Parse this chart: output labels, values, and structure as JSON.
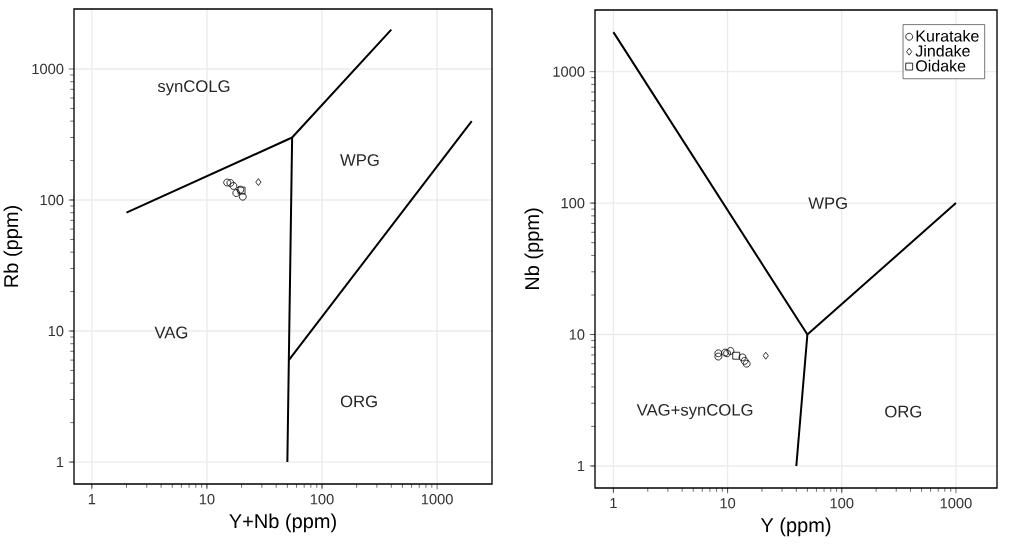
{
  "chart_data": [
    {
      "type": "scatter",
      "xlabel": "Y+Nb (ppm)",
      "ylabel": "Rb (ppm)",
      "log": "xy",
      "grid": true,
      "legend": false,
      "xlim": [
        0.7,
        3000
      ],
      "ylim": [
        0.68,
        2870
      ],
      "xticks": [
        1,
        10,
        100,
        1000
      ],
      "yticks": [
        1,
        10,
        100,
        1000
      ],
      "series": [
        {
          "type": "line",
          "color": "#000000",
          "x": [
            2,
            55,
            400
          ],
          "values": [
            80,
            300,
            2000
          ]
        },
        {
          "type": "line",
          "color": "#000000",
          "x": [
            55,
            51.5,
            50
          ],
          "values": [
            300,
            6,
            1
          ]
        },
        {
          "type": "line",
          "color": "#000000",
          "x": [
            51.5,
            2000
          ],
          "values": [
            6,
            400
          ]
        },
        {
          "marker": "circle",
          "color": "#000000",
          "x": [
            15,
            16,
            17,
            18,
            19.5,
            20.5
          ],
          "values": [
            136,
            135,
            128,
            113,
            120,
            106
          ]
        },
        {
          "marker": "diamond",
          "color": "#000000",
          "x": [
            28
          ],
          "values": [
            137
          ]
        },
        {
          "marker": "square",
          "color": "#000000",
          "x": [
            20
          ],
          "values": [
            118
          ]
        }
      ],
      "annotations": [
        "synCOLG",
        "WPG",
        "VAG",
        "ORG"
      ]
    },
    {
      "type": "scatter",
      "xlabel": "Y (ppm)",
      "ylabel": "Nb (ppm)",
      "log": "xy",
      "grid": true,
      "legend": "top right",
      "xlim": [
        0.69,
        2290
      ],
      "ylim": [
        0.68,
        2945
      ],
      "xticks": [
        1,
        10,
        100,
        1000
      ],
      "yticks": [
        1,
        10,
        100,
        1000
      ],
      "series": [
        {
          "type": "line",
          "color": "#000000",
          "x": [
            1,
            50,
            1000
          ],
          "values": [
            2000,
            10,
            100
          ]
        },
        {
          "type": "line",
          "color": "#000000",
          "x": [
            50,
            40
          ],
          "values": [
            10,
            1
          ]
        },
        {
          "name": "Kuratake",
          "marker": "circle",
          "color": "#000000",
          "x": [
            8.3,
            8.3,
            9.5,
            9.9,
            10.6,
            13.5,
            14.1,
            14.7
          ],
          "values": [
            7.2,
            6.8,
            7.3,
            7.2,
            7.5,
            6.7,
            6.3,
            6.0
          ]
        },
        {
          "name": "Jindake",
          "marker": "diamond",
          "color": "#000000",
          "x": [
            21.6
          ],
          "values": [
            6.9
          ]
        },
        {
          "name": "Oidake",
          "marker": "square",
          "color": "#000000",
          "x": [
            11.9
          ],
          "values": [
            6.9
          ]
        }
      ],
      "annotations": [
        "WPG",
        "VAG+synCOLG",
        "ORG"
      ]
    }
  ]
}
